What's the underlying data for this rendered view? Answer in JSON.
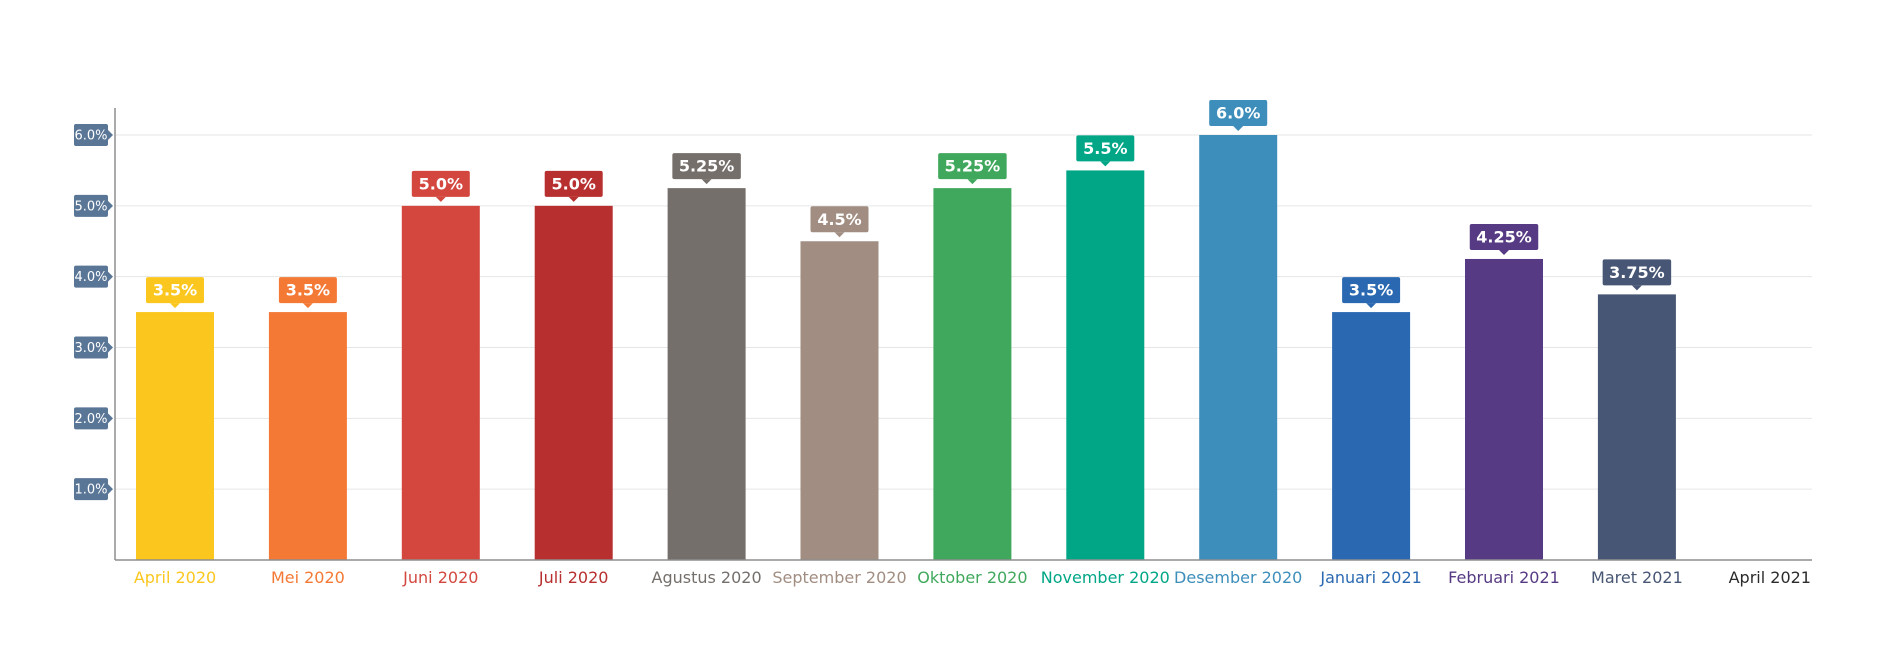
{
  "chart_data": {
    "type": "bar",
    "categories": [
      "April 2020",
      "Mei 2020",
      "Juni 2020",
      "Juli 2020",
      "Agustus 2020",
      "September 2020",
      "Oktober 2020",
      "November 2020",
      "Desember 2020",
      "Januari 2021",
      "Februari 2021",
      "Maret 2021",
      "April 2021"
    ],
    "values": [
      3.5,
      3.5,
      5.0,
      5.0,
      5.25,
      4.5,
      5.25,
      5.5,
      6.0,
      3.5,
      4.25,
      3.75,
      null
    ],
    "value_labels": [
      "3.5%",
      "3.5%",
      "5.0%",
      "5.0%",
      "5.25%",
      "4.5%",
      "5.25%",
      "5.5%",
      "6.0%",
      "3.5%",
      "4.25%",
      "3.75%",
      ""
    ],
    "colors": [
      "#fbc71e",
      "#f47935",
      "#d3473f",
      "#b72f2e",
      "#756f6b",
      "#a18d81",
      "#40a85c",
      "#00a686",
      "#3d8ebb",
      "#2a69b1",
      "#563a83",
      "#475674",
      "#2b2b2b"
    ],
    "ytick_values": [
      1,
      2,
      3,
      4,
      5,
      6
    ],
    "ytick_labels": [
      "1.0%",
      "2.0%",
      "3.0%",
      "4.0%",
      "5.0%",
      "6.0%"
    ],
    "ylim": [
      0,
      6.35
    ],
    "grid": true,
    "title": "",
    "xlabel": "",
    "ylabel": ""
  }
}
